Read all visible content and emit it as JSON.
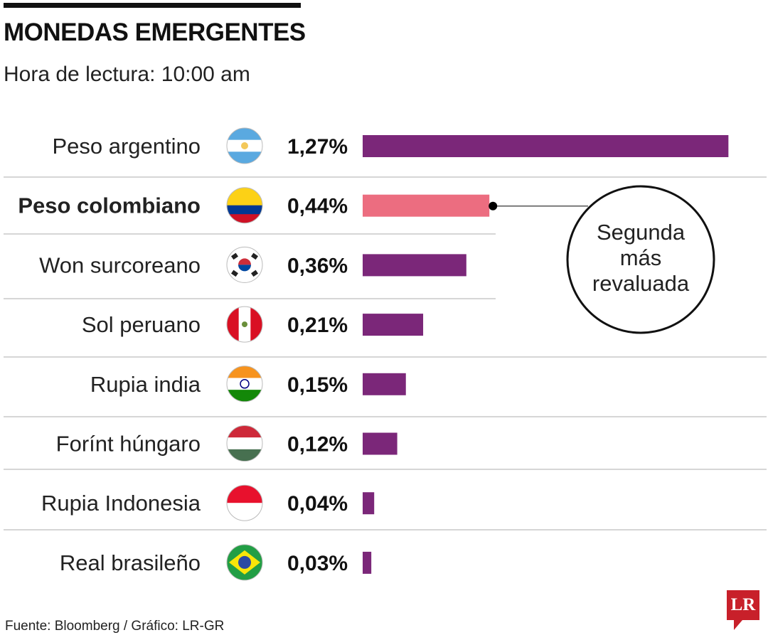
{
  "header": {
    "title": "MONEDAS EMERGENTES",
    "subtitle": "Hora de lectura: 10:00 am"
  },
  "chart_data": {
    "type": "bar",
    "orientation": "horizontal",
    "title": "MONEDAS EMERGENTES",
    "subtitle": "Hora de lectura: 10:00 am",
    "categories": [
      "Peso argentino",
      "Peso colombiano",
      "Won surcoreano",
      "Sol peruano",
      "Rupia india",
      "Forínt húngaro",
      "Rupia Indonesia",
      "Real brasileño"
    ],
    "values": [
      1.27,
      0.44,
      0.36,
      0.21,
      0.15,
      0.12,
      0.04,
      0.03
    ],
    "value_labels": [
      "1,27%",
      "0,44%",
      "0,36%",
      "0,21%",
      "0,15%",
      "0,12%",
      "0,04%",
      "0,03%"
    ],
    "flags": [
      "argentina",
      "colombia",
      "south-korea",
      "peru",
      "india",
      "hungary",
      "indonesia",
      "brazil"
    ],
    "highlight_index": 1,
    "colors": {
      "bar": "#7b2779",
      "highlight": "#ec6d80"
    },
    "annotation": {
      "lines": [
        "Segunda",
        "más",
        "revaluada"
      ]
    },
    "grid": false
  },
  "footer": {
    "source": "Fuente: Bloomberg / Gráfico: LR-GR",
    "logo": "LR"
  }
}
